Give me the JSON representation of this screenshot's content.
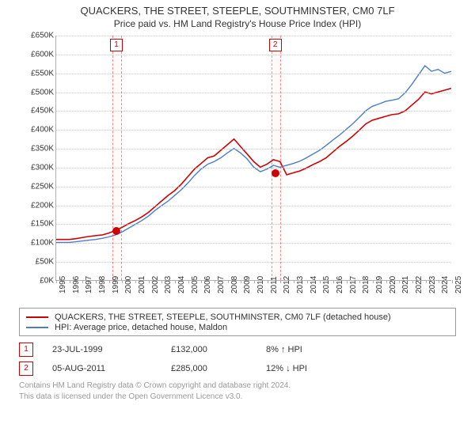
{
  "title": "QUACKERS, THE STREET, STEEPLE, SOUTHMINSTER, CM0 7LF",
  "subtitle": "Price paid vs. HM Land Registry's House Price Index (HPI)",
  "chart": {
    "type": "line",
    "background_color": "#ffffff",
    "grid_color": "#c8c8c8",
    "grid_style": "dotted",
    "axis_color": "#b0b0b0",
    "font_family": "Arial",
    "label_fontsize": 10,
    "x": {
      "ticks": [
        "1995",
        "1996",
        "1997",
        "1998",
        "1999",
        "2000",
        "2001",
        "2002",
        "2003",
        "2004",
        "2005",
        "2006",
        "2007",
        "2008",
        "2009",
        "2010",
        "2011",
        "2012",
        "2013",
        "2014",
        "2015",
        "2016",
        "2017",
        "2018",
        "2019",
        "2020",
        "2021",
        "2022",
        "2023",
        "2024",
        "2025"
      ],
      "min_index": 0,
      "max_index": 30,
      "rotation_deg": -90
    },
    "y": {
      "min": 0,
      "max": 650,
      "step": 50,
      "label_prefix": "£",
      "label_suffix": "K"
    },
    "markers": [
      {
        "label": "1",
        "x_index": 4.56,
        "band_width_index": 0.6
      },
      {
        "label": "2",
        "x_index": 16.6,
        "band_width_index": 0.6
      }
    ],
    "sale_points": [
      {
        "x_index": 4.56,
        "y_value": 132,
        "color": "#d00000",
        "radius": 5
      },
      {
        "x_index": 16.6,
        "y_value": 285,
        "color": "#d00000",
        "radius": 5
      }
    ],
    "series": [
      {
        "name": "QUACKERS, THE STREET, STEEPLE, SOUTHMINSTER, CM0 7LF (detached house)",
        "color": "#d00000",
        "line_width": 1.6,
        "values": [
          108,
          108,
          108,
          110,
          113,
          116,
          118,
          120,
          125,
          132,
          140,
          150,
          158,
          168,
          180,
          195,
          210,
          225,
          238,
          255,
          275,
          295,
          310,
          325,
          330,
          345,
          360,
          375,
          355,
          335,
          315,
          300,
          308,
          320,
          315,
          280,
          285,
          290,
          298,
          307,
          315,
          325,
          340,
          355,
          368,
          382,
          398,
          415,
          425,
          430,
          435,
          440,
          442,
          450,
          465,
          480,
          500,
          495,
          500,
          505,
          510
        ]
      },
      {
        "name": "HPI: Average price, detached house, Maldon",
        "color": "#4a7ecb",
        "line_width": 1.4,
        "values": [
          100,
          100,
          100,
          102,
          104,
          106,
          108,
          111,
          115,
          120,
          128,
          138,
          148,
          158,
          170,
          185,
          198,
          210,
          225,
          240,
          258,
          278,
          295,
          308,
          315,
          325,
          338,
          350,
          338,
          322,
          300,
          288,
          295,
          305,
          300,
          305,
          310,
          316,
          325,
          335,
          345,
          358,
          372,
          385,
          400,
          415,
          432,
          450,
          462,
          468,
          475,
          478,
          482,
          498,
          520,
          545,
          570,
          555,
          560,
          550,
          555
        ]
      }
    ]
  },
  "legend": {
    "border_color": "#999999",
    "fontsize": 11
  },
  "sales": [
    {
      "num": "1",
      "date": "23-JUL-1999",
      "price": "£132,000",
      "delta": "8% ↑ HPI"
    },
    {
      "num": "2",
      "date": "05-AUG-2011",
      "price": "£285,000",
      "delta": "12% ↓ HPI"
    }
  ],
  "footer": {
    "line1": "Contains HM Land Registry data © Crown copyright and database right 2024.",
    "line2": "This data is licensed under the Open Government Licence v3.0.",
    "color": "#999999",
    "fontsize": 10
  }
}
